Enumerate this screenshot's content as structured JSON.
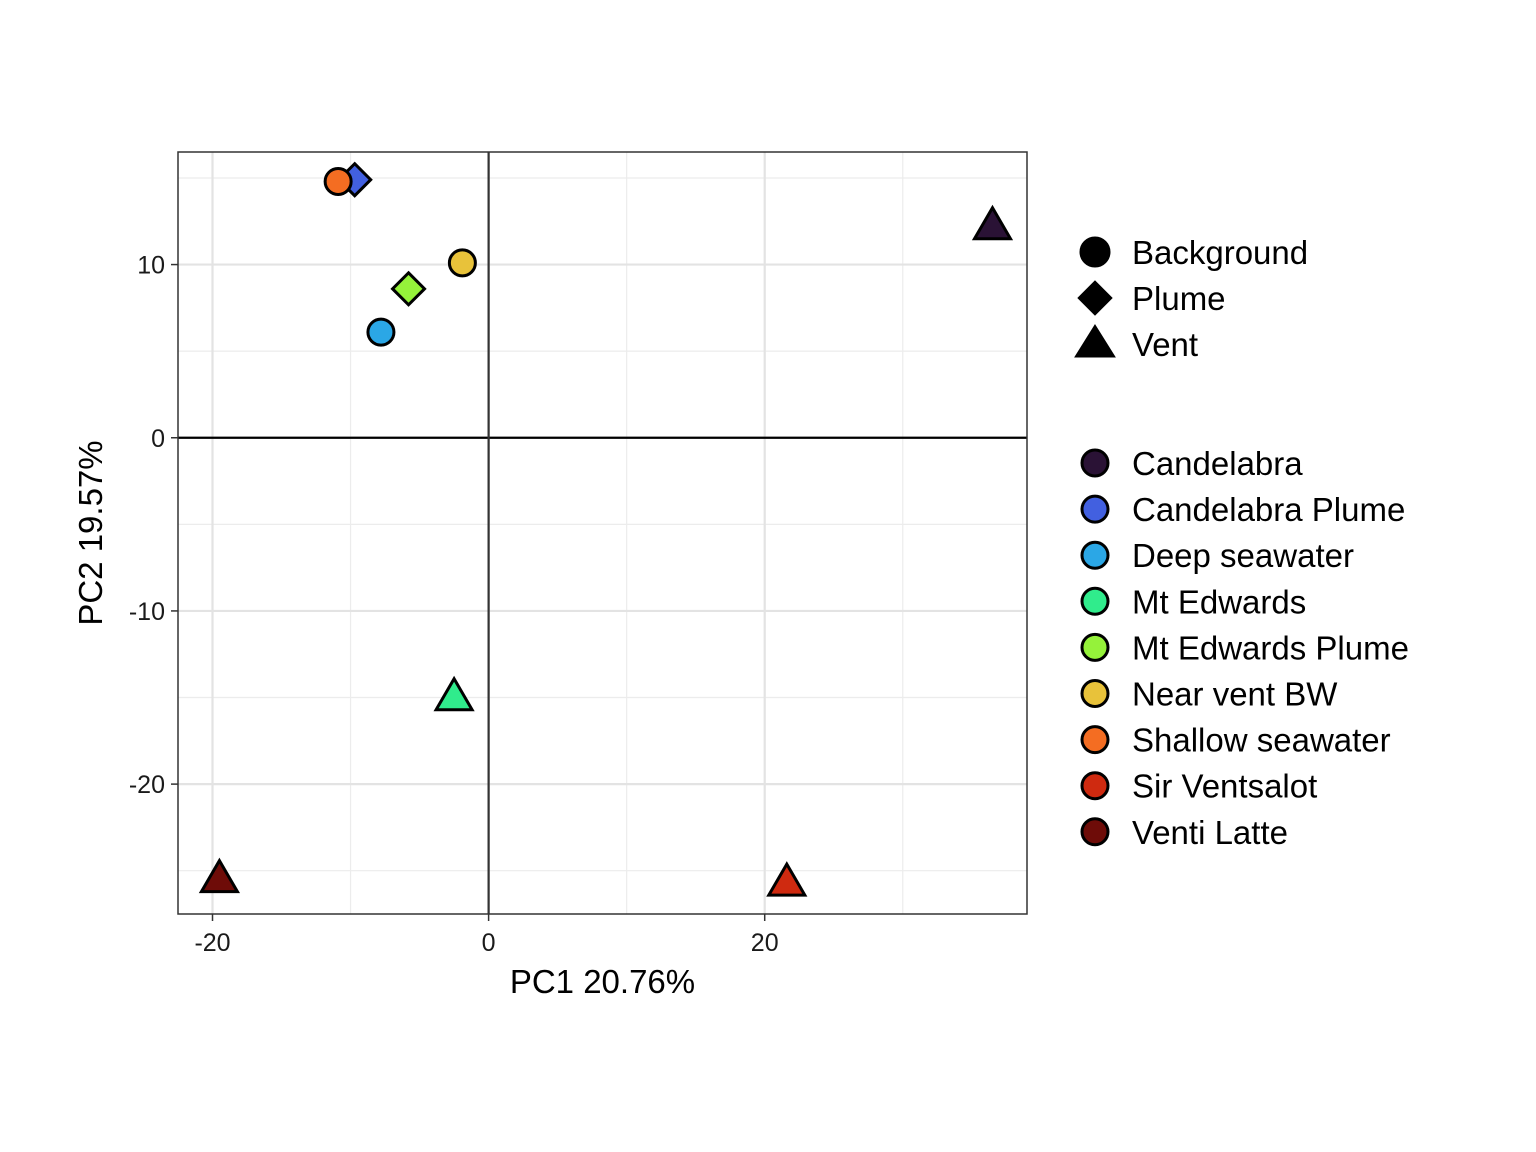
{
  "chart_data": {
    "type": "scatter",
    "title": "",
    "xlabel": "PC1 20.76%",
    "ylabel": "PC2 19.57%",
    "xlim": [
      -22.5,
      39
    ],
    "ylim": [
      -27.5,
      16.5
    ],
    "x_ticks": [
      -20,
      0,
      20
    ],
    "x_tick_labels": [
      "-20",
      "0",
      "20"
    ],
    "y_ticks": [
      -20,
      -10,
      0,
      10
    ],
    "y_tick_labels": [
      "-20",
      "-10",
      "0",
      "10"
    ],
    "grid": true,
    "zero_lines": true,
    "legend_position": "right",
    "shape_legend": [
      {
        "label": "Background",
        "shape": "circle"
      },
      {
        "label": "Plume",
        "shape": "diamond"
      },
      {
        "label": "Vent",
        "shape": "triangle"
      }
    ],
    "color_legend": [
      {
        "label": "Candelabra",
        "color": "#2a1235"
      },
      {
        "label": "Candelabra Plume",
        "color": "#4260e0"
      },
      {
        "label": "Deep seawater",
        "color": "#2ba7e6"
      },
      {
        "label": "Mt Edwards",
        "color": "#30ec8c"
      },
      {
        "label": "Mt Edwards Plume",
        "color": "#95f23a"
      },
      {
        "label": "Near vent BW",
        "color": "#e8c23a"
      },
      {
        "label": "Shallow seawater",
        "color": "#f46d22"
      },
      {
        "label": "Sir Ventsalot",
        "color": "#cf2a10"
      },
      {
        "label": "Venti Latte",
        "color": "#6e0c08"
      }
    ],
    "points": [
      {
        "site": "Candelabra",
        "type": "Vent",
        "x": 36.5,
        "y": 12.3
      },
      {
        "site": "Candelabra Plume",
        "type": "Plume",
        "x": -9.7,
        "y": 14.9
      },
      {
        "site": "Deep seawater",
        "type": "Background",
        "x": -7.8,
        "y": 6.1
      },
      {
        "site": "Mt Edwards",
        "type": "Vent",
        "x": -2.5,
        "y": -14.9
      },
      {
        "site": "Mt Edwards Plume",
        "type": "Plume",
        "x": -5.8,
        "y": 8.6
      },
      {
        "site": "Near vent BW",
        "type": "Background",
        "x": -1.9,
        "y": 10.1
      },
      {
        "site": "Shallow seawater",
        "type": "Background",
        "x": -10.9,
        "y": 14.8
      },
      {
        "site": "Sir Ventsalot",
        "type": "Vent",
        "x": 21.6,
        "y": -25.6
      },
      {
        "site": "Venti Latte",
        "type": "Vent",
        "x": -19.5,
        "y": -25.4
      }
    ]
  }
}
